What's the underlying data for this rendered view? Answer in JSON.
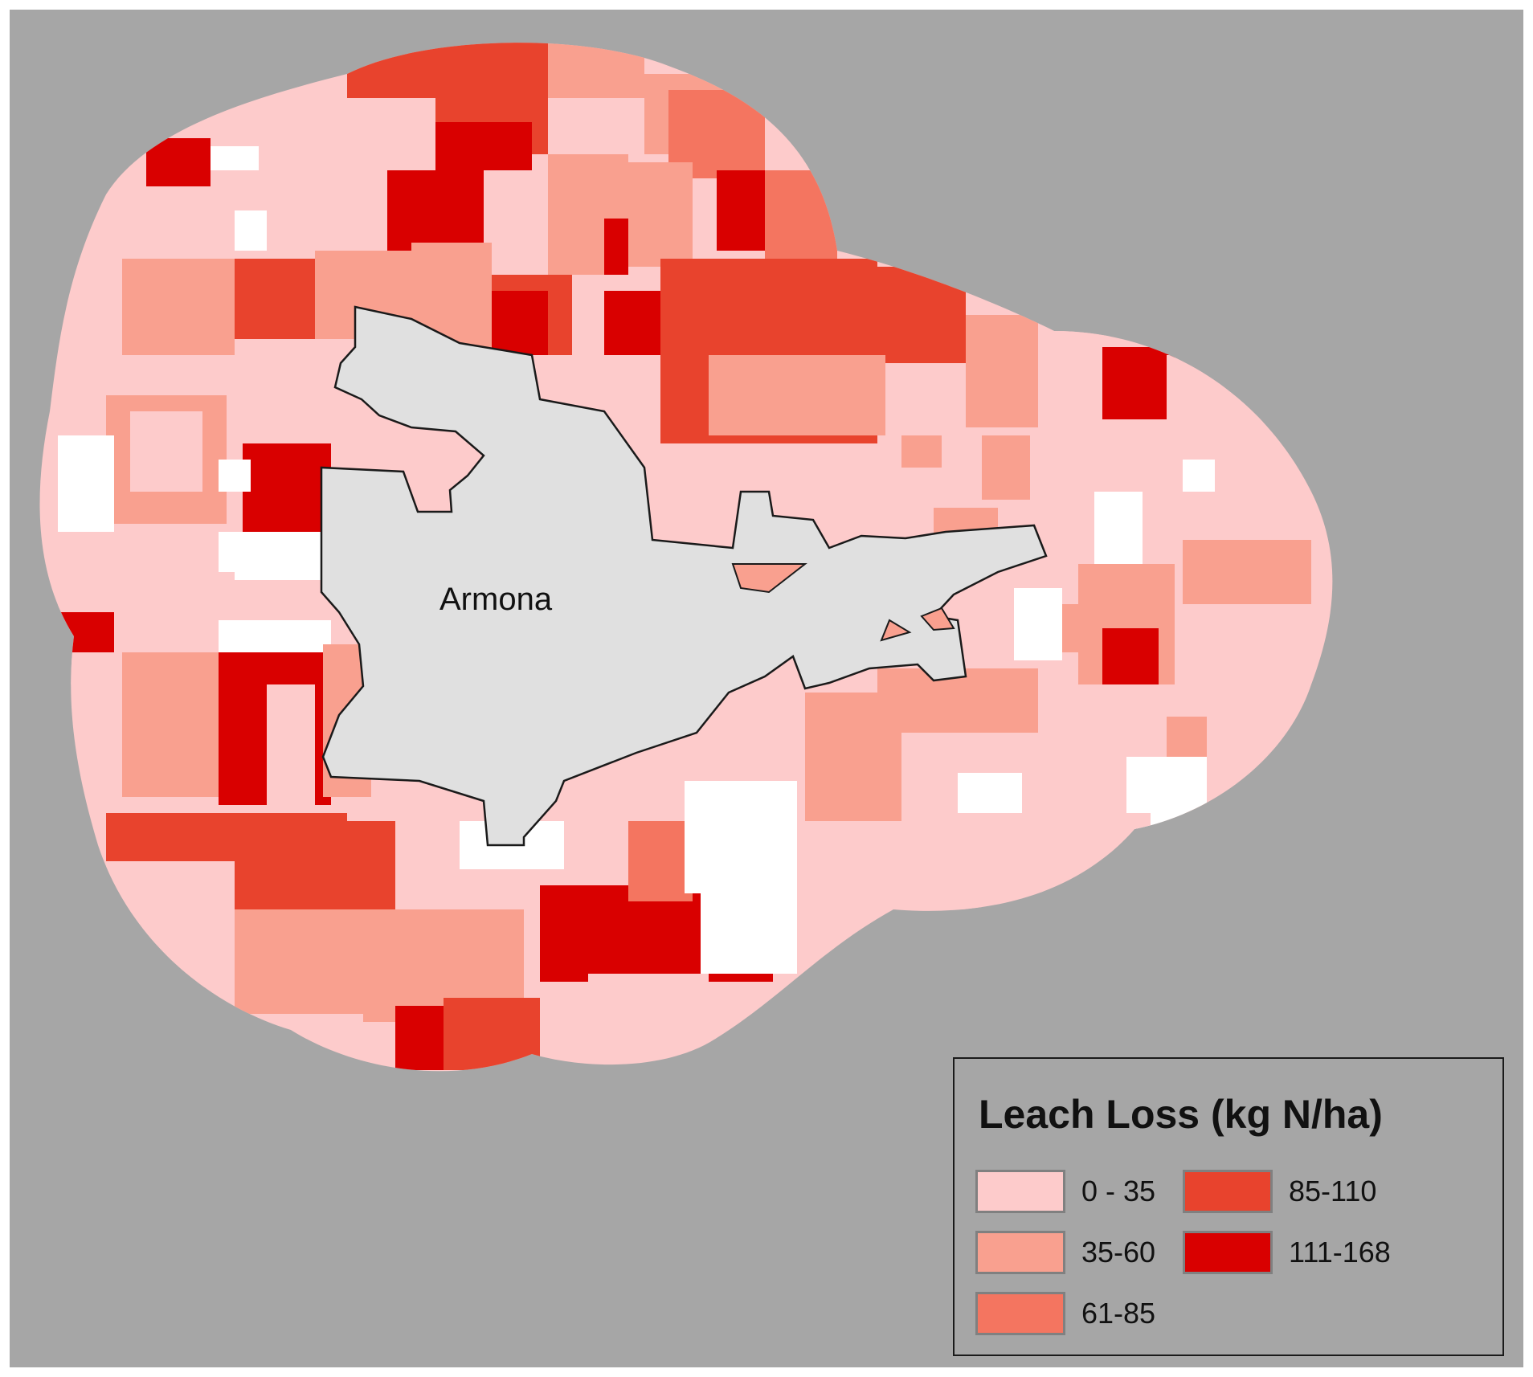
{
  "map": {
    "place_label": "Armona"
  },
  "legend": {
    "title": "Leach Loss (kg N/ha)",
    "classes": [
      {
        "label": "0 - 35",
        "color": "#fdcbcb"
      },
      {
        "label": "35-60",
        "color": "#f9a08f"
      },
      {
        "label": "61-85",
        "color": "#f47560"
      },
      {
        "label": "85-110",
        "color": "#e8432d"
      },
      {
        "label": "111-168",
        "color": "#d90000"
      }
    ]
  },
  "colors": {
    "background": "#a6a6a6",
    "no_data": "#ffffff",
    "town_area": "#e0e0e0"
  }
}
